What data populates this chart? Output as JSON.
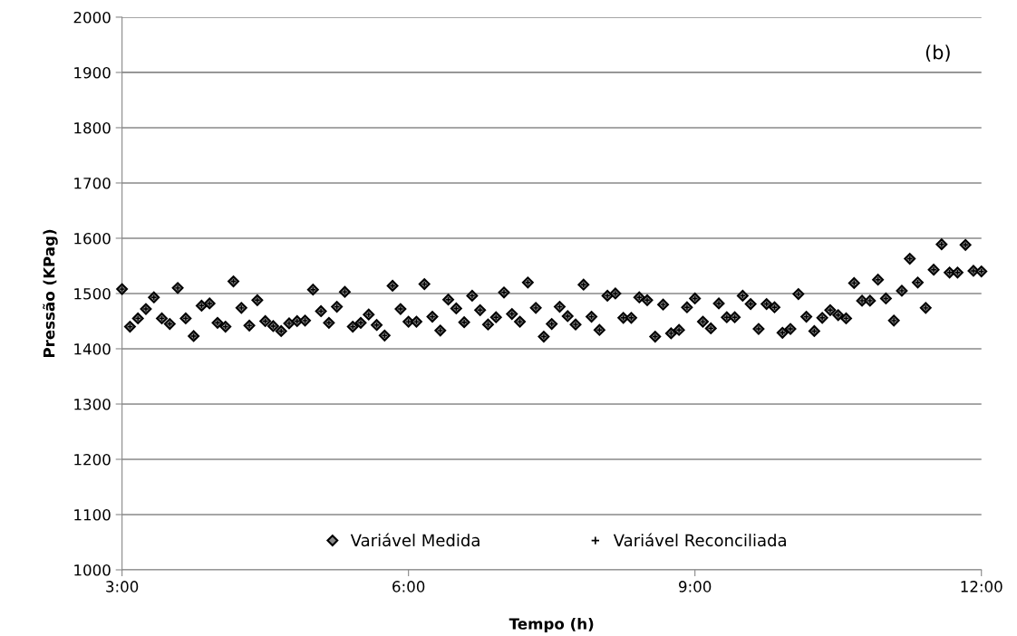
{
  "chart_data": {
    "type": "scatter",
    "xlabel": "Tempo (h)",
    "ylabel": "Pressão (KPag)",
    "annotations": [
      "(b)"
    ],
    "x": [
      3,
      3.0833,
      3.1667,
      3.25,
      3.3333,
      3.4167,
      3.5,
      3.5833,
      3.6667,
      3.75,
      3.8333,
      3.9167,
      4,
      4.0833,
      4.1667,
      4.25,
      4.3333,
      4.4167,
      4.5,
      4.5833,
      4.6667,
      4.75,
      4.8333,
      4.9167,
      5,
      5.0833,
      5.1667,
      5.25,
      5.3333,
      5.4167,
      5.5,
      5.5833,
      5.6667,
      5.75,
      5.8333,
      5.9167,
      6,
      6.0833,
      6.1667,
      6.25,
      6.3333,
      6.4167,
      6.5,
      6.5833,
      6.6667,
      6.75,
      6.8333,
      6.9167,
      7,
      7.0833,
      7.1667,
      7.25,
      7.3333,
      7.4167,
      7.5,
      7.5833,
      7.6667,
      7.75,
      7.8333,
      7.9167,
      8,
      8.0833,
      8.1667,
      8.25,
      8.3333,
      8.4167,
      8.5,
      8.5833,
      8.6667,
      8.75,
      8.8333,
      8.9167,
      9,
      9.0833,
      9.1667,
      9.25,
      9.3333,
      9.4167,
      9.5,
      9.5833,
      9.6667,
      9.75,
      9.8333,
      9.9167,
      10,
      10.0833,
      10.1667,
      10.25,
      10.3333,
      10.4167,
      10.5,
      10.5833,
      10.6667,
      10.75,
      10.8333,
      10.9167,
      11,
      11.0833,
      11.1667,
      11.25,
      11.3333,
      11.4167,
      11.5,
      11.5833,
      11.6667,
      11.75,
      11.8333,
      11.9167,
      12
    ],
    "series": [
      {
        "name": "Variável Medida",
        "color": "#000000",
        "marker": "diamond",
        "values": [
          1508,
          1440,
          1455,
          1472,
          1493,
          1455,
          1445,
          1510,
          1455,
          1423,
          1478,
          1482,
          1447,
          1440,
          1522,
          1474,
          1442,
          1488,
          1450,
          1441,
          1432,
          1446,
          1450,
          1451,
          1507,
          1468,
          1447,
          1476,
          1503,
          1440,
          1447,
          1462,
          1443,
          1424,
          1514,
          1472,
          1449,
          1449,
          1517,
          1458,
          1433,
          1489,
          1473,
          1448,
          1496,
          1470,
          1444,
          1457,
          1502,
          1463,
          1449,
          1520,
          1474,
          1422,
          1445,
          1476,
          1459,
          1444,
          1516,
          1458,
          1434,
          1496,
          1500,
          1456,
          1456,
          1493,
          1488,
          1422,
          1480,
          1428,
          1434,
          1475,
          1491,
          1449,
          1437,
          1482,
          1457,
          1457,
          1496,
          1481,
          1436,
          1481,
          1475,
          1429,
          1436,
          1499,
          1458,
          1432,
          1456,
          1470,
          1461,
          1455,
          1519,
          1487,
          1487,
          1525,
          1491,
          1451,
          1505,
          1563,
          1520,
          1474,
          1543,
          1589,
          1538,
          1538,
          1588,
          1541,
          1540
        ]
      },
      {
        "name": "Variável Reconciliada",
        "color": "#000000",
        "marker": "cross",
        "values": [
          1508,
          1440,
          1455,
          1472,
          1493,
          1455,
          1445,
          1510,
          1455,
          1423,
          1478,
          1482,
          1447,
          1440,
          1522,
          1474,
          1442,
          1488,
          1450,
          1441,
          1432,
          1446,
          1450,
          1451,
          1507,
          1468,
          1447,
          1476,
          1503,
          1440,
          1447,
          1462,
          1443,
          1424,
          1514,
          1472,
          1449,
          1449,
          1517,
          1458,
          1433,
          1489,
          1473,
          1448,
          1496,
          1470,
          1444,
          1457,
          1502,
          1463,
          1449,
          1520,
          1474,
          1422,
          1445,
          1476,
          1459,
          1444,
          1516,
          1458,
          1434,
          1496,
          1500,
          1456,
          1456,
          1493,
          1488,
          1422,
          1480,
          1428,
          1434,
          1475,
          1491,
          1449,
          1437,
          1482,
          1457,
          1457,
          1496,
          1481,
          1436,
          1481,
          1475,
          1429,
          1436,
          1499,
          1458,
          1432,
          1456,
          1470,
          1461,
          1455,
          1519,
          1487,
          1487,
          1525,
          1491,
          1451,
          1505,
          1563,
          1520,
          1474,
          1543,
          1589,
          1538,
          1538,
          1588,
          1541,
          1540
        ]
      }
    ],
    "xlim": [
      3,
      12
    ],
    "xticks": [
      {
        "value": 3,
        "label": "3:00"
      },
      {
        "value": 6,
        "label": "6:00"
      },
      {
        "value": 9,
        "label": "9:00"
      },
      {
        "value": 12,
        "label": "12:00"
      }
    ],
    "ylim": [
      1000,
      2000
    ],
    "yticks": [
      1000,
      1100,
      1200,
      1300,
      1400,
      1500,
      1600,
      1700,
      1800,
      1900,
      2000
    ],
    "grid": "y",
    "legend": "bottom"
  }
}
